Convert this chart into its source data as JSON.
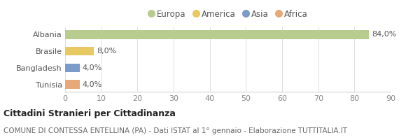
{
  "categories": [
    "Tunisia",
    "Bangladesh",
    "Brasile",
    "Albania"
  ],
  "values": [
    4.0,
    4.0,
    8.0,
    84.0
  ],
  "colors": [
    "#e8a878",
    "#7b9bc8",
    "#e8c860",
    "#b8cc90"
  ],
  "labels": [
    "4,0%",
    "4,0%",
    "8,0%",
    "84,0%"
  ],
  "xlim": [
    0,
    90
  ],
  "xticks": [
    0,
    10,
    20,
    30,
    40,
    50,
    60,
    70,
    80,
    90
  ],
  "legend_labels": [
    "Europa",
    "America",
    "Asia",
    "Africa"
  ],
  "legend_colors": [
    "#b8cc90",
    "#e8c860",
    "#7b9bc8",
    "#e8a878"
  ],
  "title_bold": "Cittadini Stranieri per Cittadinanza",
  "subtitle": "COMUNE DI CONTESSA ENTELLINA (PA) - Dati ISTAT al 1° gennaio - Elaborazione TUTTITALIA.IT",
  "background_color": "#ffffff",
  "bar_height": 0.52,
  "label_fontsize": 8,
  "tick_fontsize": 8,
  "legend_fontsize": 8.5,
  "title_fontsize": 9,
  "subtitle_fontsize": 7.5
}
